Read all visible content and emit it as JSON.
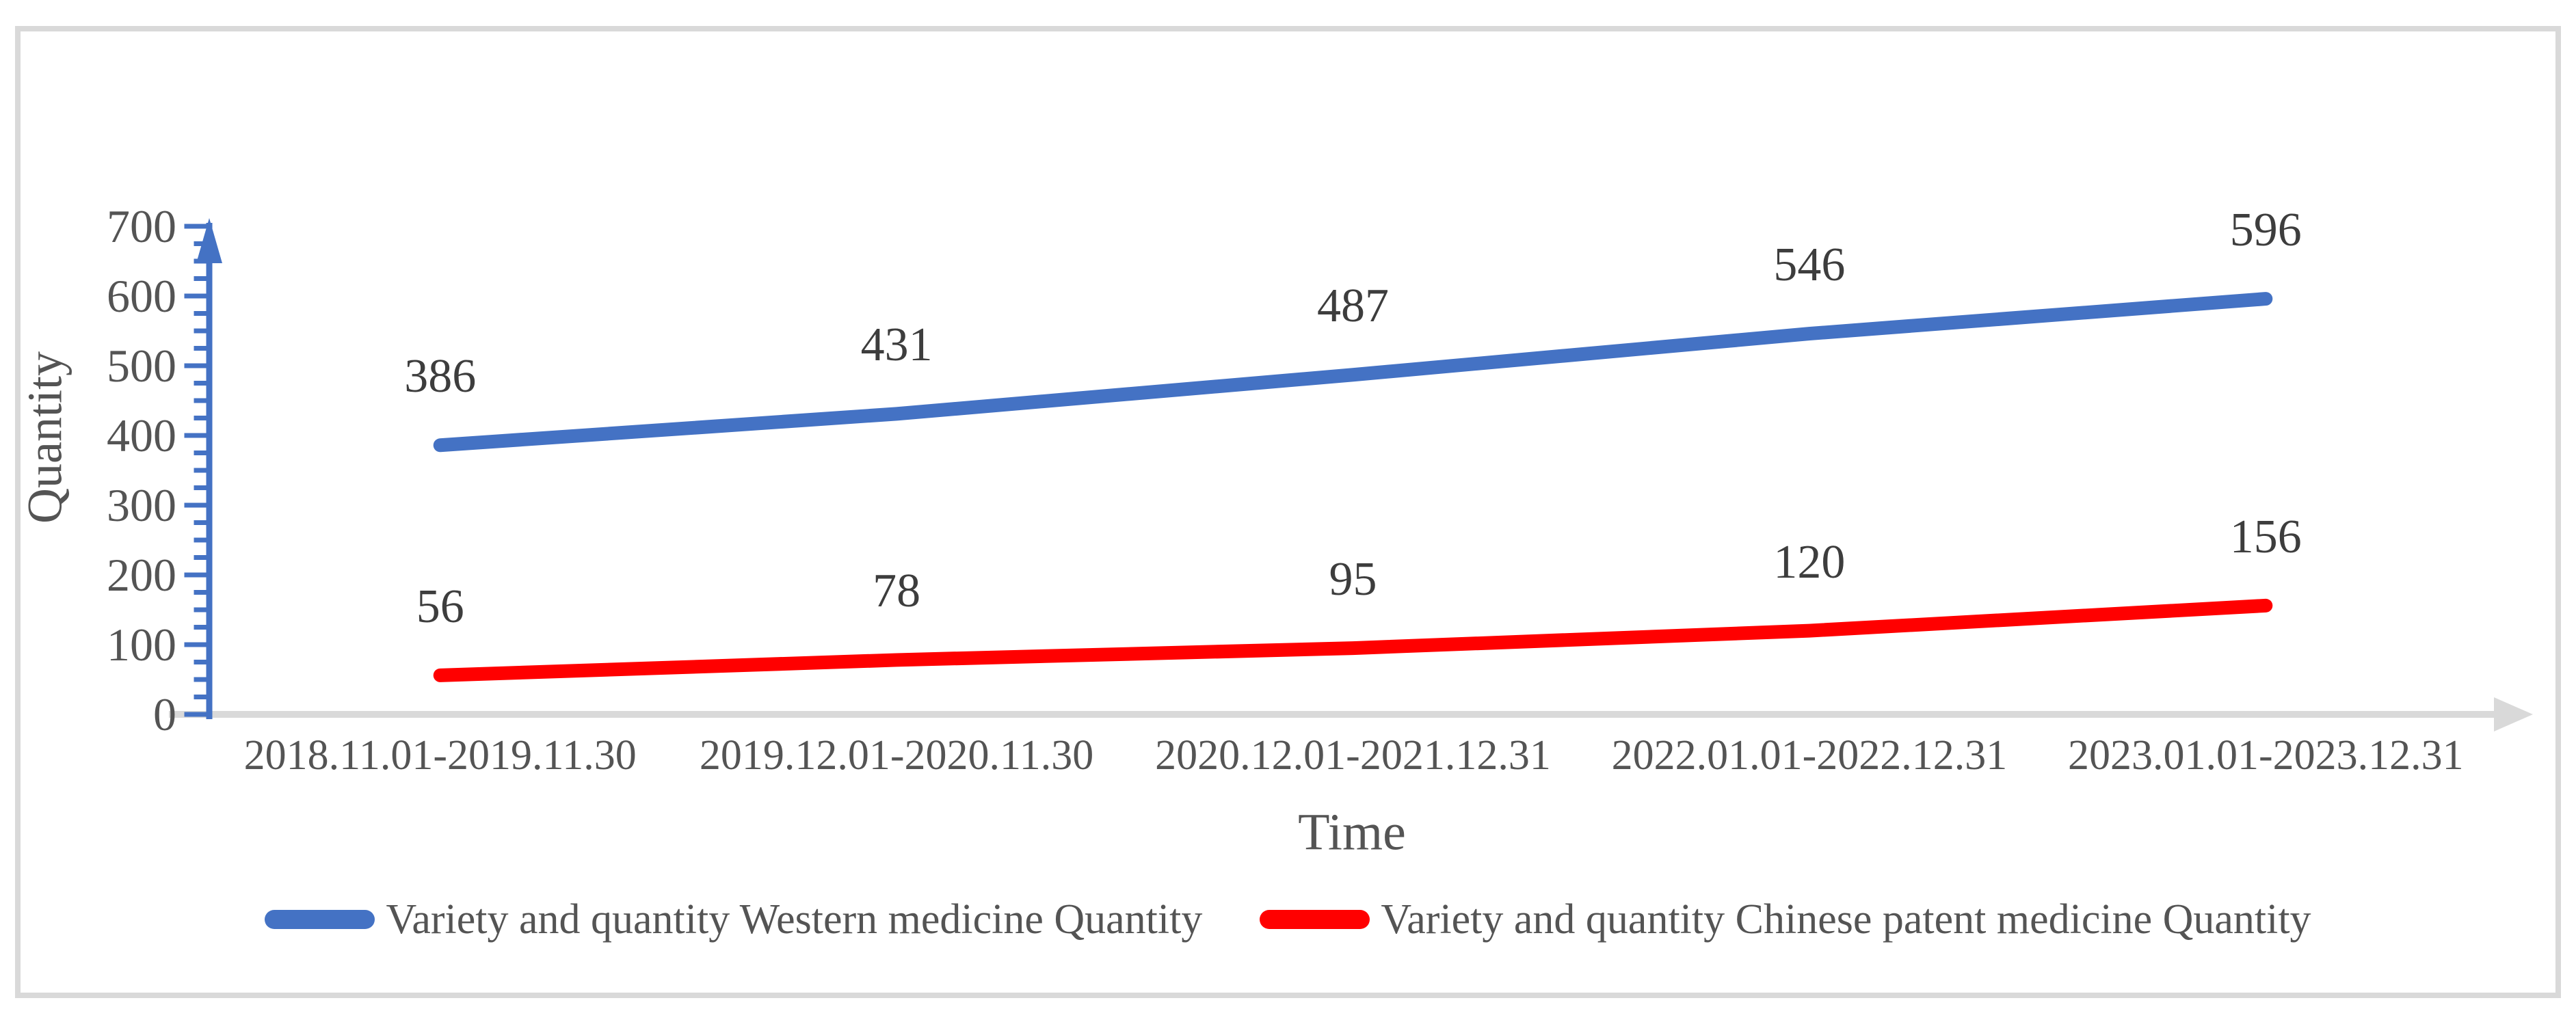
{
  "chart_data": {
    "type": "line",
    "categories": [
      "2018.11.01-2019.11.30",
      "2019.12.01-2020.11.30",
      "2020.12.01-2021.12.31",
      "2022.01.01-2022.12.31",
      "2023.01.01-2023.12.31"
    ],
    "series": [
      {
        "name": "Variety and quantity Western medicine Quantity",
        "color": "#4472C4",
        "values": [
          386,
          431,
          487,
          546,
          596
        ]
      },
      {
        "name": "Variety and quantity Chinese patent medicine Quantity",
        "color": "#FF0000",
        "values": [
          56,
          78,
          95,
          120,
          156
        ]
      }
    ],
    "xlabel": "Time",
    "ylabel": "Quantity",
    "ylim": [
      0,
      700
    ],
    "yticks": [
      0,
      100,
      200,
      300,
      400,
      500,
      600,
      700
    ],
    "ytick_minor_step": 25,
    "grid": false,
    "legend_position": "bottom",
    "data_labels": true
  },
  "colors": {
    "y_axis_arrow": "#4472C4",
    "x_axis_arrow": "#D9D9D9",
    "frame_border": "#D9D9D9",
    "tick_text": "#545454",
    "data_label_text": "#3d3d3d",
    "background": "#FFFFFF"
  }
}
